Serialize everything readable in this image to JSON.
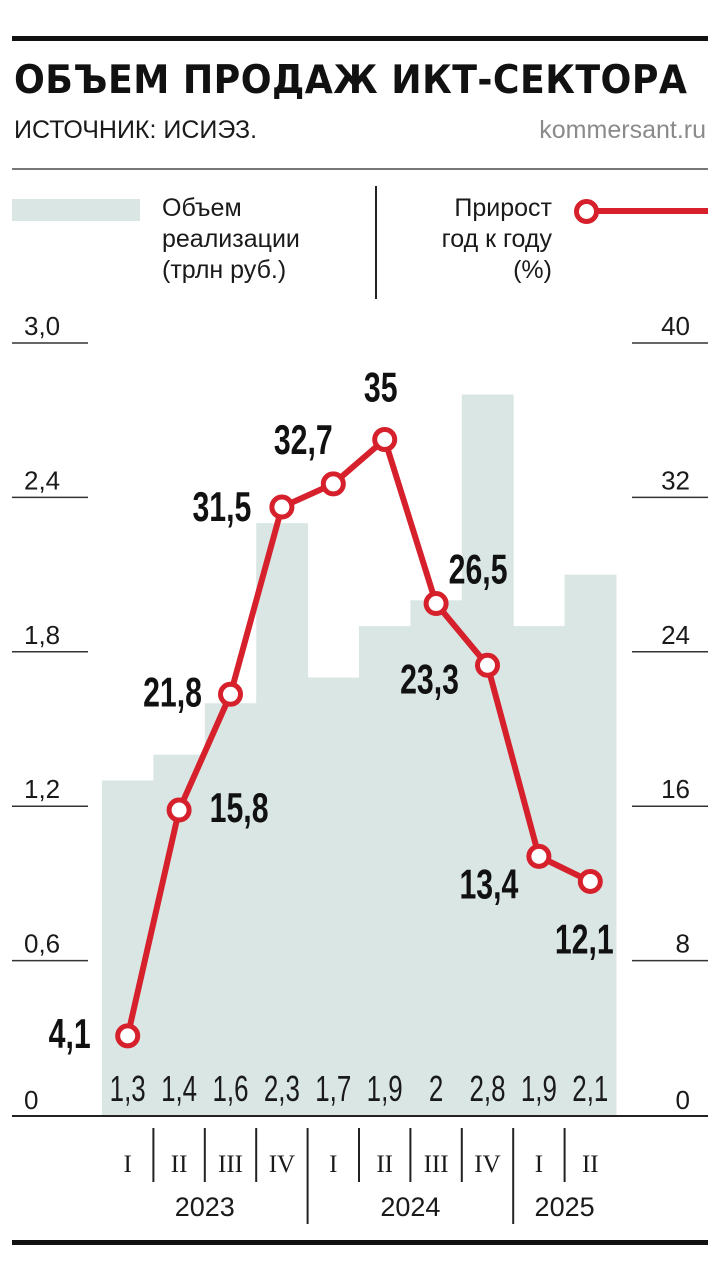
{
  "header": {
    "title": "ОБЪЕМ ПРОДАЖ ИКТ-СЕКТОРА",
    "source": "ИСТОЧНИК: ИСИЭЗ.",
    "site": "kommersant.ru"
  },
  "legend": {
    "bars_label": [
      "Объем",
      "реализации",
      "(трлн руб.)"
    ],
    "growth_label": [
      "Прирост",
      "год к году",
      "(%)"
    ]
  },
  "colors": {
    "bars": "#d9e6e4",
    "line": "#d6202b",
    "text": "#1a1a1a"
  },
  "chart_data": {
    "type": "bar+line",
    "categories": [
      "I",
      "II",
      "III",
      "IV",
      "I",
      "II",
      "III",
      "IV",
      "I",
      "II"
    ],
    "years": [
      {
        "label": "2023",
        "quarters": 4
      },
      {
        "label": "2024",
        "quarters": 4
      },
      {
        "label": "2025",
        "quarters": 2
      }
    ],
    "series": [
      {
        "name": "Объем реализации (трлн руб.)",
        "type": "bar",
        "axis": "left",
        "values": [
          1.3,
          1.4,
          1.6,
          2.3,
          1.7,
          1.9,
          2,
          2.8,
          1.9,
          2.1
        ],
        "labels": [
          "1,3",
          "1,4",
          "1,6",
          "2,3",
          "1,7",
          "1,9",
          "2",
          "2,8",
          "1,9",
          "2,1"
        ]
      },
      {
        "name": "Прирост год к году (%)",
        "type": "line",
        "axis": "right",
        "values": [
          4.1,
          15.8,
          21.8,
          31.5,
          32.7,
          35,
          26.5,
          23.3,
          13.4,
          12.1
        ],
        "labels": [
          "4,1",
          "15,8",
          "21,8",
          "31,5",
          "32,7",
          "35",
          "26,5",
          "23,3",
          "13,4",
          "12,1"
        ]
      }
    ],
    "y_left": {
      "range": [
        0,
        3.0
      ],
      "ticks": [
        "0",
        "0,6",
        "1,2",
        "1,8",
        "2,4",
        "3,0"
      ]
    },
    "y_right": {
      "range": [
        0,
        40
      ],
      "ticks": [
        "0",
        "8",
        "16",
        "24",
        "32",
        "40"
      ]
    }
  }
}
